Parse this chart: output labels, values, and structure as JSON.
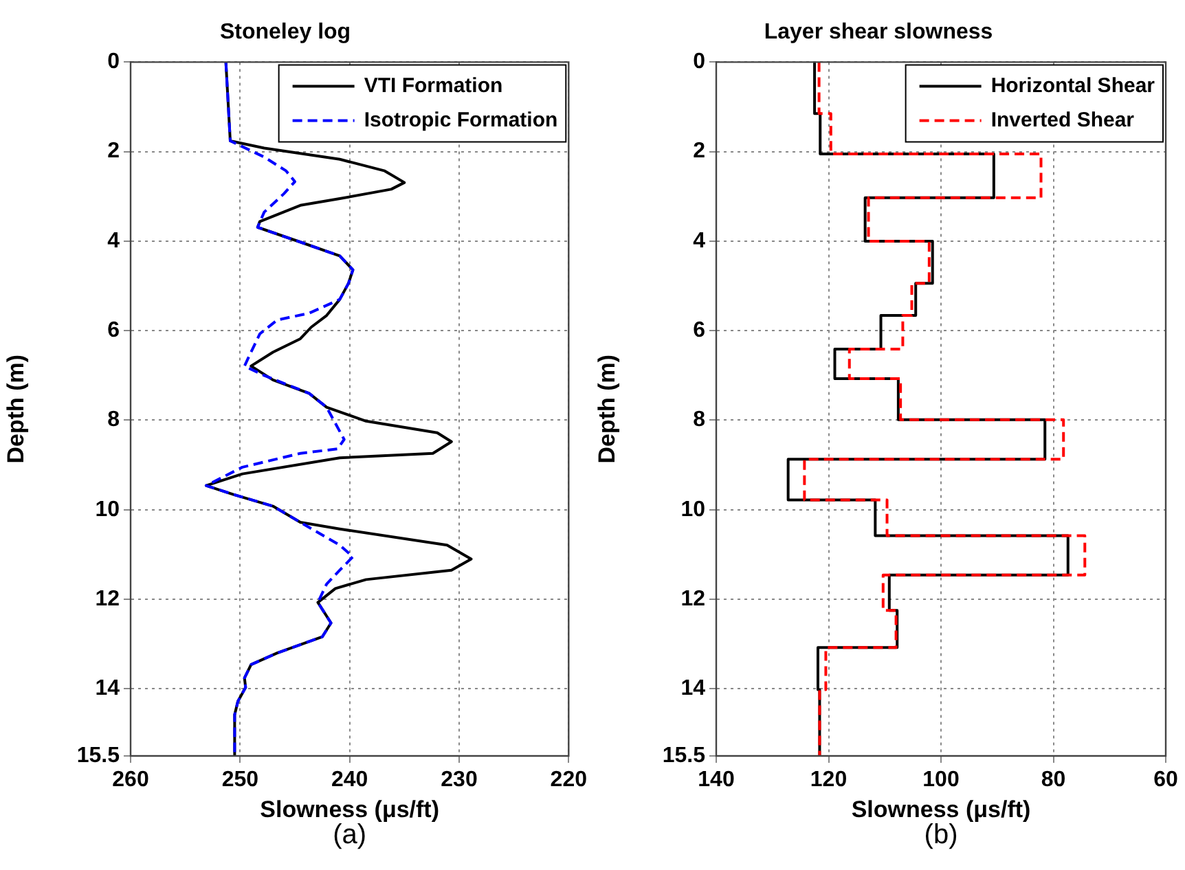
{
  "chart_data": [
    {
      "type": "line",
      "title": "Stoneley log",
      "xlabel": "Slowness (μs/ft)",
      "ylabel": "Depth (m)",
      "annotations": [
        "(a)"
      ],
      "xlim": [
        260,
        220
      ],
      "xticks": [
        260,
        250,
        240,
        230,
        220
      ],
      "ylim": [
        15.5,
        0
      ],
      "yticks": [
        0,
        2,
        4,
        6,
        8,
        10,
        12,
        14,
        15.5
      ],
      "grid": true,
      "legend": "top right",
      "series": [
        {
          "name": "VTI Formation",
          "color": "#000000",
          "line_style": "solid",
          "x": [
            251.3,
            250.9,
            247.8,
            240.9,
            236.8,
            235.0,
            236.2,
            240.9,
            244.5,
            248.2,
            248.4,
            244.5,
            240.9,
            239.7,
            240.1,
            240.9,
            242.1,
            243.5,
            244.5,
            247.0,
            249.0,
            247.0,
            243.7,
            242.1,
            238.5,
            232.0,
            230.7,
            232.4,
            240.9,
            249.8,
            253.1,
            250.6,
            247.0,
            244.5,
            240.9,
            231.1,
            228.9,
            230.7,
            238.5,
            241.3,
            242.9,
            241.7,
            242.5,
            246.6,
            249.0,
            249.6,
            249.5,
            250.2,
            250.5,
            250.5
          ],
          "values": [
            0,
            1.76,
            1.92,
            2.17,
            2.43,
            2.69,
            2.84,
            3.05,
            3.2,
            3.56,
            3.69,
            4.02,
            4.33,
            4.64,
            4.94,
            5.3,
            5.66,
            5.92,
            6.18,
            6.48,
            6.79,
            7.1,
            7.4,
            7.71,
            8.02,
            8.28,
            8.48,
            8.74,
            8.84,
            9.2,
            9.46,
            9.66,
            9.92,
            10.28,
            10.43,
            10.79,
            11.1,
            11.35,
            11.56,
            11.76,
            12.07,
            12.53,
            12.84,
            13.2,
            13.46,
            13.76,
            13.97,
            14.28,
            14.58,
            15.5
          ]
        },
        {
          "name": "Isotropic Formation",
          "color": "#0000ff",
          "line_style": "dashed",
          "x": [
            251.3,
            250.9,
            247.8,
            245.8,
            245.0,
            246.0,
            247.8,
            248.4,
            244.5,
            240.9,
            239.7,
            240.1,
            240.9,
            243.7,
            246.6,
            248.2,
            249.2,
            249.6,
            247.8,
            243.7,
            242.1,
            241.3,
            240.5,
            241.1,
            244.5,
            249.8,
            253.1,
            250.6,
            247.0,
            244.5,
            240.9,
            239.7,
            240.9,
            242.1,
            242.9,
            241.7,
            242.5,
            246.6,
            249.0,
            249.6,
            249.5,
            250.2,
            250.5,
            250.5
          ],
          "values": [
            0,
            1.76,
            2.12,
            2.43,
            2.67,
            2.94,
            3.35,
            3.69,
            4.02,
            4.33,
            4.64,
            4.94,
            5.3,
            5.61,
            5.76,
            6.07,
            6.58,
            6.79,
            7.0,
            7.4,
            7.71,
            8.07,
            8.43,
            8.64,
            8.74,
            9.05,
            9.46,
            9.66,
            9.92,
            10.28,
            10.79,
            11.05,
            11.35,
            11.66,
            12.07,
            12.53,
            12.84,
            13.2,
            13.46,
            13.76,
            13.97,
            14.28,
            14.58,
            15.5
          ]
        }
      ]
    },
    {
      "type": "line",
      "title": "Layer shear slowness",
      "xlabel": "Slowness (μs/ft)",
      "ylabel": "Depth (m)",
      "annotations": [
        "(b)"
      ],
      "xlim": [
        140,
        60
      ],
      "xticks": [
        140,
        120,
        100,
        80,
        60
      ],
      "ylim": [
        15.5,
        0
      ],
      "yticks": [
        0,
        2,
        4,
        6,
        8,
        10,
        12,
        14,
        15.5
      ],
      "grid": true,
      "legend": "top right",
      "series": [
        {
          "name": "Horizontal Shear",
          "color": "#000000",
          "line_style": "solid",
          "x": [
            122.5,
            122.5,
            121.5,
            121.5,
            90.6,
            90.6,
            113.5,
            113.5,
            101.5,
            101.5,
            104.5,
            104.5,
            110.7,
            110.7,
            118.9,
            118.9,
            107.6,
            107.6,
            81.5,
            81.5,
            127.2,
            127.2,
            111.7,
            111.7,
            77.4,
            77.4,
            109.2,
            109.2,
            107.8,
            107.8,
            121.9,
            121.9,
            121.6,
            121.6
          ],
          "values": [
            0,
            1.15,
            1.15,
            2.05,
            2.05,
            3.03,
            3.03,
            4.0,
            4.0,
            4.94,
            4.94,
            5.66,
            5.66,
            6.41,
            6.41,
            7.07,
            7.07,
            7.99,
            7.99,
            8.87,
            8.87,
            9.78,
            9.78,
            10.58,
            10.58,
            11.46,
            11.46,
            12.25,
            12.25,
            13.08,
            13.08,
            14.02,
            14.02,
            15.5
          ]
        },
        {
          "name": "Inverted Shear",
          "color": "#ff0000",
          "line_style": "dashed",
          "x": [
            121.7,
            121.7,
            119.6,
            119.6,
            82.2,
            82.2,
            112.9,
            112.9,
            102.1,
            102.1,
            105.2,
            105.2,
            106.8,
            106.8,
            116.3,
            116.3,
            107.2,
            107.2,
            78.2,
            78.2,
            124.3,
            124.3,
            109.6,
            109.6,
            74.4,
            74.4,
            110.3,
            110.3,
            108.0,
            108.0,
            120.5,
            120.5,
            121.6,
            121.6
          ],
          "values": [
            0,
            1.15,
            1.15,
            2.05,
            2.05,
            3.03,
            3.03,
            4.0,
            4.0,
            4.94,
            4.94,
            5.66,
            5.66,
            6.41,
            6.41,
            7.07,
            7.07,
            7.99,
            7.99,
            8.87,
            8.87,
            9.78,
            9.78,
            10.58,
            10.58,
            11.46,
            11.46,
            12.25,
            12.25,
            13.08,
            13.08,
            14.02,
            14.02,
            15.5
          ]
        }
      ]
    }
  ]
}
